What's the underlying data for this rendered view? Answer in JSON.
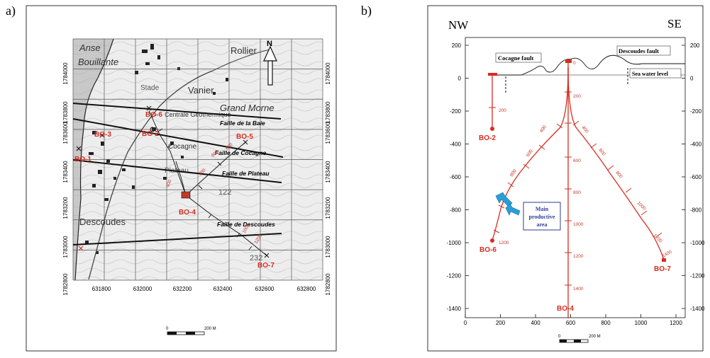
{
  "panels": {
    "a": {
      "label": "a)",
      "x_ticks": [
        "631800",
        "632000",
        "632200",
        "632400",
        "632600",
        "632800"
      ],
      "y_ticks": [
        "1784000",
        "1783800",
        "1783600",
        "1783400",
        "1783200",
        "1783000",
        "1782800"
      ],
      "north_label": "N",
      "scale_label": "200 M",
      "places": [
        "Rollier",
        "Vanier",
        "Grand Morne",
        "Descoudes",
        "Anse",
        "Bouillante",
        "Stade",
        "Plateau",
        "Cocagne"
      ],
      "faults": [
        "Faille de la Baie",
        "Faille de Cocagne",
        "Faille de Plateau",
        "Faille de Descoudes"
      ],
      "centrale": "Centrale Géothermique",
      "spot_heights": [
        "122",
        "232"
      ],
      "wells": [
        "BO-6",
        "BO-3",
        "BO-2",
        "BO-5",
        "BO-1",
        "BO-4",
        "BO-7"
      ]
    },
    "b": {
      "label": "b)",
      "nw": "NW",
      "se": "SE",
      "y_ticks": [
        "200",
        "0",
        "-200",
        "-400",
        "-600",
        "-800",
        "-1000",
        "-1200",
        "-1400"
      ],
      "x_ticks": [
        "0",
        "200",
        "400",
        "600",
        "800",
        "1000",
        "1200"
      ],
      "faults": [
        "Cocagne fault",
        "Descoudes fault"
      ],
      "sea_level": "Sea water level",
      "productive_area": [
        "Main",
        "productive",
        "area"
      ],
      "wells": [
        "BO-2",
        "BO-6",
        "BO-4",
        "BO-7"
      ],
      "depth_labels": [
        "200",
        "200",
        "400",
        "600",
        "800",
        "1000",
        "1200",
        "200",
        "400",
        "600",
        "800",
        "1000",
        "1200",
        "1400",
        "400",
        "600",
        "800",
        "1000",
        "1200",
        "1400",
        "0"
      ],
      "scale_label": "200 M"
    }
  }
}
